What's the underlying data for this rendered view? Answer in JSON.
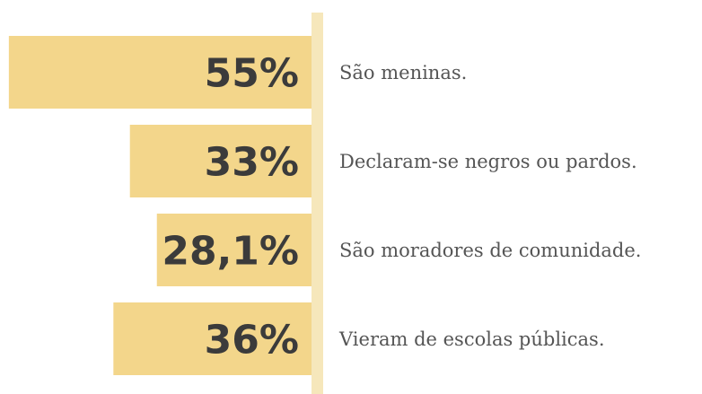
{
  "chart_data": {
    "type": "bar",
    "orientation": "horizontal",
    "categories": [
      "São meninas.",
      "Declaram-se negros ou pardos.",
      "São moradores de comunidade.",
      "Vieram de escolas públicas."
    ],
    "values": [
      55,
      33,
      28.1,
      36
    ],
    "value_labels": [
      "55%",
      "33%",
      "28,1%",
      "36%"
    ],
    "color": "#f3d68b"
  }
}
